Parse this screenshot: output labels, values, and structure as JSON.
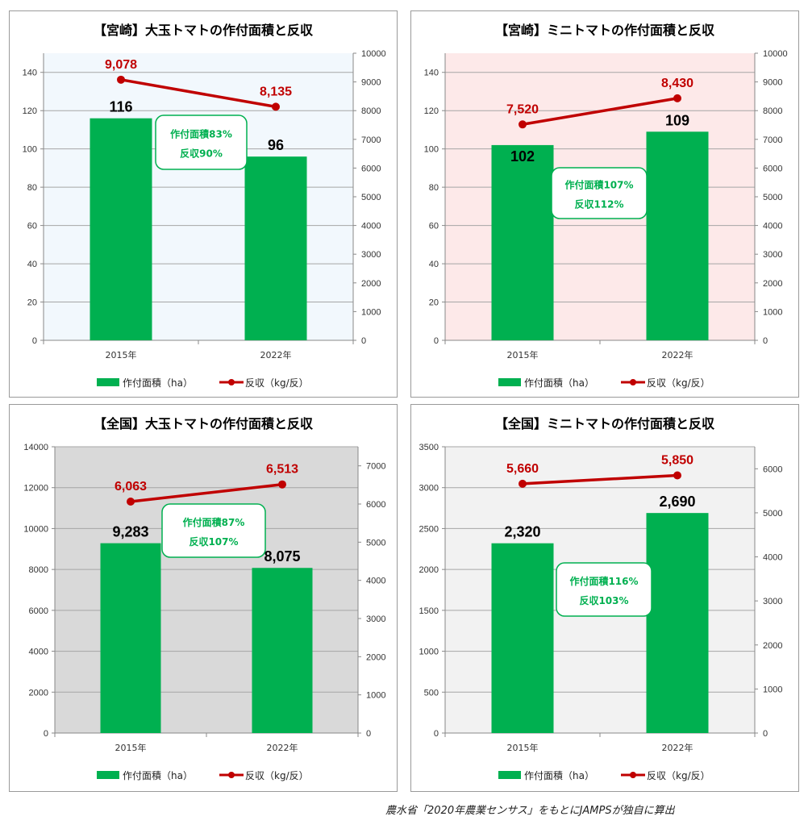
{
  "chart_data": [
    {
      "type": "bar",
      "title": "【宮崎】大玉トマトの作付面積と反収",
      "categories": [
        "2015年",
        "2022年"
      ],
      "series": [
        {
          "name": "作付面積（ha）",
          "type": "bar",
          "axis": "left",
          "values": [
            116,
            96
          ],
          "labels": [
            "116",
            "96"
          ]
        },
        {
          "name": "反収（kg/反）",
          "type": "line",
          "axis": "right",
          "values": [
            9078,
            8135
          ],
          "labels": [
            "9,078",
            "8,135"
          ]
        }
      ],
      "y_left": {
        "min": 0,
        "max": 150,
        "ticks": [
          0,
          20,
          40,
          60,
          80,
          100,
          120,
          140
        ]
      },
      "y_right": {
        "min": 0,
        "max": 10000,
        "ticks": [
          0,
          1000,
          2000,
          3000,
          4000,
          5000,
          6000,
          7000,
          8000,
          9000,
          10000
        ]
      },
      "annotation": [
        "作付面積83%",
        "反収90%"
      ],
      "plot_bg": "#f2f8fd",
      "legend": "bottom",
      "grid": true
    },
    {
      "type": "bar",
      "title": "【宮崎】ミニトマトの作付面積と反収",
      "categories": [
        "2015年",
        "2022年"
      ],
      "series": [
        {
          "name": "作付面積（ha）",
          "type": "bar",
          "axis": "left",
          "values": [
            102,
            109
          ],
          "labels": [
            "102",
            "109"
          ]
        },
        {
          "name": "反収（kg/反）",
          "type": "line",
          "axis": "right",
          "values": [
            7520,
            8430
          ],
          "labels": [
            "7,520",
            "8,430"
          ]
        }
      ],
      "y_left": {
        "min": 0,
        "max": 150,
        "ticks": [
          0,
          20,
          40,
          60,
          80,
          100,
          120,
          140
        ]
      },
      "y_right": {
        "min": 0,
        "max": 10000,
        "ticks": [
          0,
          1000,
          2000,
          3000,
          4000,
          5000,
          6000,
          7000,
          8000,
          9000,
          10000
        ]
      },
      "annotation": [
        "作付面積107%",
        "反収112%"
      ],
      "plot_bg": "#fde9e9",
      "legend": "bottom",
      "grid": true
    },
    {
      "type": "bar",
      "title": "【全国】大玉トマトの作付面積と反収",
      "categories": [
        "2015年",
        "2022年"
      ],
      "series": [
        {
          "name": "作付面積（ha）",
          "type": "bar",
          "axis": "left",
          "values": [
            9283,
            8075
          ],
          "labels": [
            "9,283",
            "8,075"
          ]
        },
        {
          "name": "反収（kg/反）",
          "type": "line",
          "axis": "right",
          "values": [
            6063,
            6513
          ],
          "labels": [
            "6,063",
            "6,513"
          ]
        }
      ],
      "y_left": {
        "min": 0,
        "max": 14000,
        "ticks": [
          0,
          2000,
          4000,
          6000,
          8000,
          10000,
          12000,
          14000
        ]
      },
      "y_right": {
        "min": 0,
        "max": 7500,
        "ticks": [
          0,
          1000,
          2000,
          3000,
          4000,
          5000,
          6000,
          7000
        ]
      },
      "annotation": [
        "作付面積87%",
        "反収107%"
      ],
      "plot_bg": "#d9d9d9",
      "legend": "bottom",
      "grid": true
    },
    {
      "type": "bar",
      "title": "【全国】ミニトマトの作付面積と反収",
      "categories": [
        "2015年",
        "2022年"
      ],
      "series": [
        {
          "name": "作付面積（ha）",
          "type": "bar",
          "axis": "left",
          "values": [
            2320,
            2690
          ],
          "labels": [
            "2,320",
            "2,690"
          ]
        },
        {
          "name": "反収（kg/反）",
          "type": "line",
          "axis": "right",
          "values": [
            5660,
            5850
          ],
          "labels": [
            "5,660",
            "5,850"
          ]
        }
      ],
      "y_left": {
        "min": 0,
        "max": 3500,
        "ticks": [
          0,
          500,
          1000,
          1500,
          2000,
          2500,
          3000,
          3500
        ]
      },
      "y_right": {
        "min": 0,
        "max": 6500,
        "ticks": [
          0,
          1000,
          2000,
          3000,
          4000,
          5000,
          6000
        ]
      },
      "annotation": [
        "作付面積116%",
        "反収103%"
      ],
      "plot_bg": "#f2f2f2",
      "legend": "bottom",
      "grid": true
    }
  ],
  "colors": {
    "bar": "#00b050",
    "line": "#c00000",
    "grid": "#a6a6a6",
    "annotation_border": "#00b050"
  },
  "footer": {
    "source": "農水省「2020年農業センサス」をもとにJAMPSが独自に算出"
  }
}
